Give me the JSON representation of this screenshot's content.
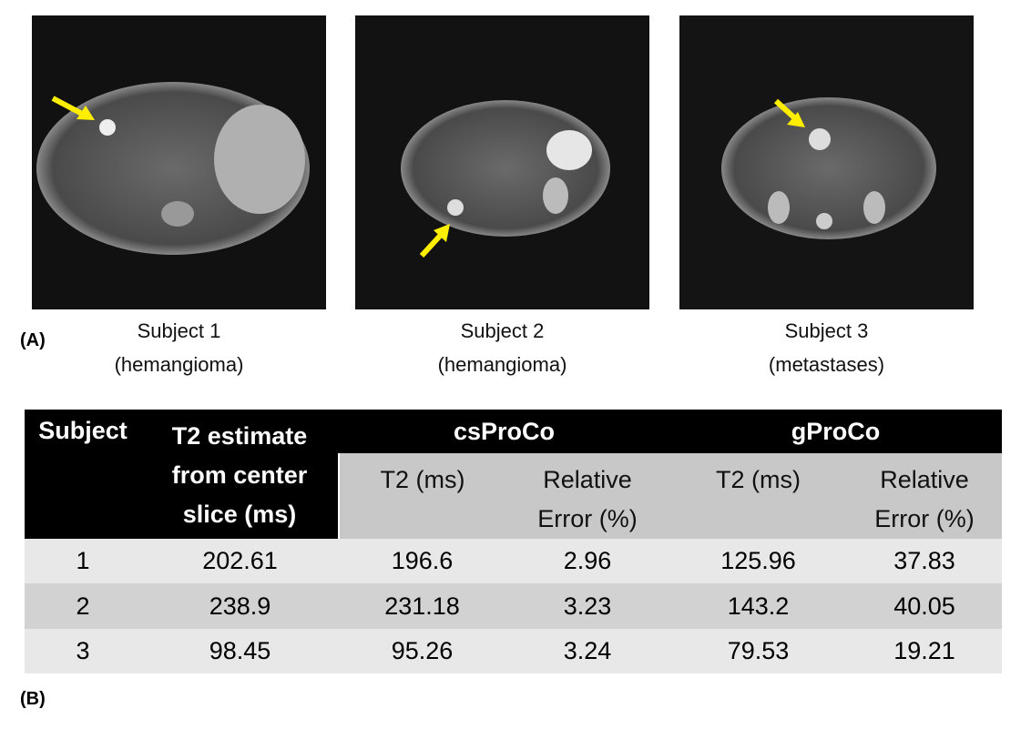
{
  "panel_a": {
    "label": "(A)",
    "subjects": [
      {
        "name": "Subject 1",
        "note": "(hemangioma)"
      },
      {
        "name": "Subject 2",
        "note": "(hemangioma)"
      },
      {
        "name": "Subject 3",
        "note": "(metastases)"
      }
    ]
  },
  "panel_b": {
    "label": "(B)",
    "table": {
      "header": {
        "subject": "Subject",
        "t2_estimate": "T2 estimate from center slice (ms)",
        "groups": [
          {
            "name": "csProCo",
            "columns": [
              "T2 (ms)",
              "Relative Error (%)"
            ]
          },
          {
            "name": "gProCo",
            "columns": [
              "T2 (ms)",
              "Relative Error (%)"
            ]
          }
        ]
      },
      "rows": [
        [
          1,
          202.61,
          196.6,
          2.96,
          125.96,
          37.83
        ],
        [
          2,
          238.9,
          231.18,
          3.23,
          143.2,
          40.05
        ],
        [
          3,
          98.45,
          95.26,
          3.24,
          79.53,
          19.21
        ]
      ]
    }
  }
}
